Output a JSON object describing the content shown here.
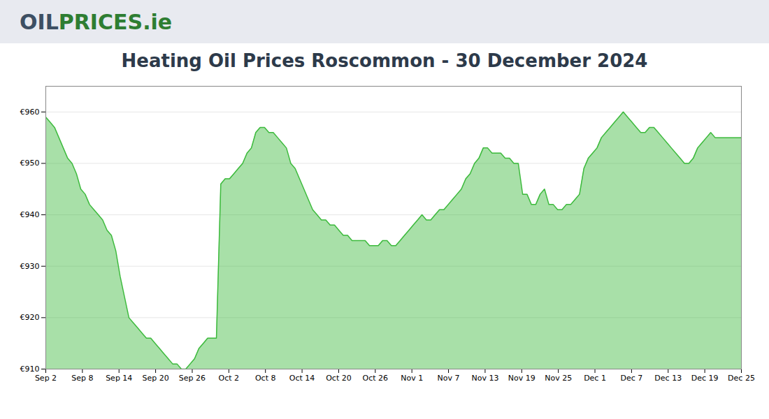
{
  "chart_data": {
    "type": "area",
    "title": "Heating Oil Prices Roscommon - 30 December 2024",
    "annotations": [
      {
        "text": "OIL",
        "color": "#3d4f63"
      },
      {
        "text": "PRICES.ie",
        "color": "#2e7d32"
      }
    ],
    "color": "#3dba3d",
    "grid": true,
    "xlim": [
      0,
      19
    ],
    "xticks": [
      {
        "value": 0,
        "label": "Sep 2"
      },
      {
        "value": 1,
        "label": "Sep 8"
      },
      {
        "value": 2,
        "label": "Sep 14"
      },
      {
        "value": 3,
        "label": "Sep 20"
      },
      {
        "value": 4,
        "label": "Sep 26"
      },
      {
        "value": 5,
        "label": "Oct 2"
      },
      {
        "value": 6,
        "label": "Oct 8"
      },
      {
        "value": 7,
        "label": "Oct 14"
      },
      {
        "value": 8,
        "label": "Oct 20"
      },
      {
        "value": 9,
        "label": "Oct 26"
      },
      {
        "value": 10,
        "label": "Nov 1"
      },
      {
        "value": 11,
        "label": "Nov 7"
      },
      {
        "value": 12,
        "label": "Nov 13"
      },
      {
        "value": 13,
        "label": "Nov 19"
      },
      {
        "value": 14,
        "label": "Nov 25"
      },
      {
        "value": 15,
        "label": "Dec 1"
      },
      {
        "value": 16,
        "label": "Dec 7"
      },
      {
        "value": 17,
        "label": "Dec 13"
      },
      {
        "value": 18,
        "label": "Dec 19"
      },
      {
        "value": 19,
        "label": "Dec 25"
      }
    ],
    "ylim": [
      910,
      965
    ],
    "yticks": [
      {
        "value": 910,
        "label": "€910"
      },
      {
        "value": 920,
        "label": "€920"
      },
      {
        "value": 930,
        "label": "€930"
      },
      {
        "value": 940,
        "label": "€940"
      },
      {
        "value": 950,
        "label": "€950"
      },
      {
        "value": 960,
        "label": "€960"
      }
    ],
    "values": [
      959,
      958,
      957,
      955,
      953,
      951,
      950,
      948,
      945,
      944,
      942,
      941,
      940,
      939,
      937,
      936,
      933,
      928,
      924,
      920,
      919,
      918,
      917,
      916,
      916,
      915,
      914,
      913,
      912,
      911,
      911,
      910,
      910,
      911,
      912,
      914,
      915,
      916,
      916,
      916,
      946,
      947,
      947,
      948,
      949,
      950,
      952,
      953,
      956,
      957,
      957,
      956,
      956,
      955,
      954,
      953,
      950,
      949,
      947,
      945,
      943,
      941,
      940,
      939,
      939,
      938,
      938,
      937,
      936,
      936,
      935,
      935,
      935,
      935,
      934,
      934,
      934,
      935,
      935,
      934,
      934,
      935,
      936,
      937,
      938,
      939,
      940,
      939,
      939,
      940,
      941,
      941,
      942,
      943,
      944,
      945,
      947,
      948,
      950,
      951,
      953,
      953,
      952,
      952,
      952,
      951,
      951,
      950,
      950,
      944,
      944,
      942,
      942,
      944,
      945,
      942,
      942,
      941,
      941,
      942,
      942,
      943,
      944,
      949,
      951,
      952,
      953,
      955,
      956,
      957,
      958,
      959,
      960,
      959,
      958,
      957,
      956,
      956,
      957,
      957,
      956,
      955,
      954,
      953,
      952,
      951,
      950,
      950,
      951,
      953,
      954,
      955,
      956,
      955,
      955,
      955,
      955,
      955,
      955,
      955
    ]
  }
}
